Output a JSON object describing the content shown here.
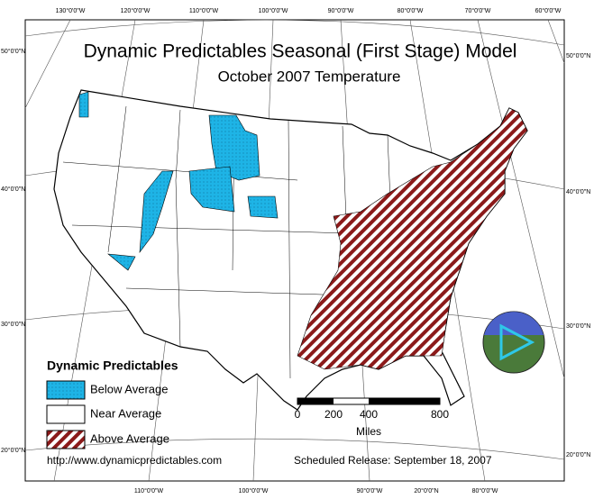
{
  "title": "Dynamic Predictables Seasonal (First Stage) Model",
  "subtitle": "October 2007 Temperature",
  "legend": {
    "title": "Dynamic Predictables",
    "items": [
      "Below Average",
      "Near Average",
      "Above Average"
    ]
  },
  "scale_bar": {
    "labels": [
      "0",
      "200",
      "400",
      "800"
    ],
    "unit": "Miles"
  },
  "url": "http://www.dynamicpredictables.com",
  "release": "Scheduled Release: September 18, 2007",
  "graticule": {
    "top": [
      "130°0'0\"W",
      "120°0'0\"W",
      "110°0'0\"W",
      "100°0'0\"W",
      "90°0'0\"W",
      "80°0'0\"W",
      "70°0'0\"W",
      "60°0'0\"W"
    ],
    "bottom": [
      "110°0'0\"W",
      "100°0'0\"W",
      "90°0'0\"W",
      "20°0'0\"N",
      "80°0'0\"W"
    ],
    "left": [
      "50°0'0\"N",
      "40°0'0\"N",
      "30°0'0\"N",
      "20°0'0\"N"
    ],
    "right": [
      "50°0'0\"N",
      "40°0'0\"N",
      "30°0'0\"N",
      "20°0'0\"N"
    ]
  }
}
